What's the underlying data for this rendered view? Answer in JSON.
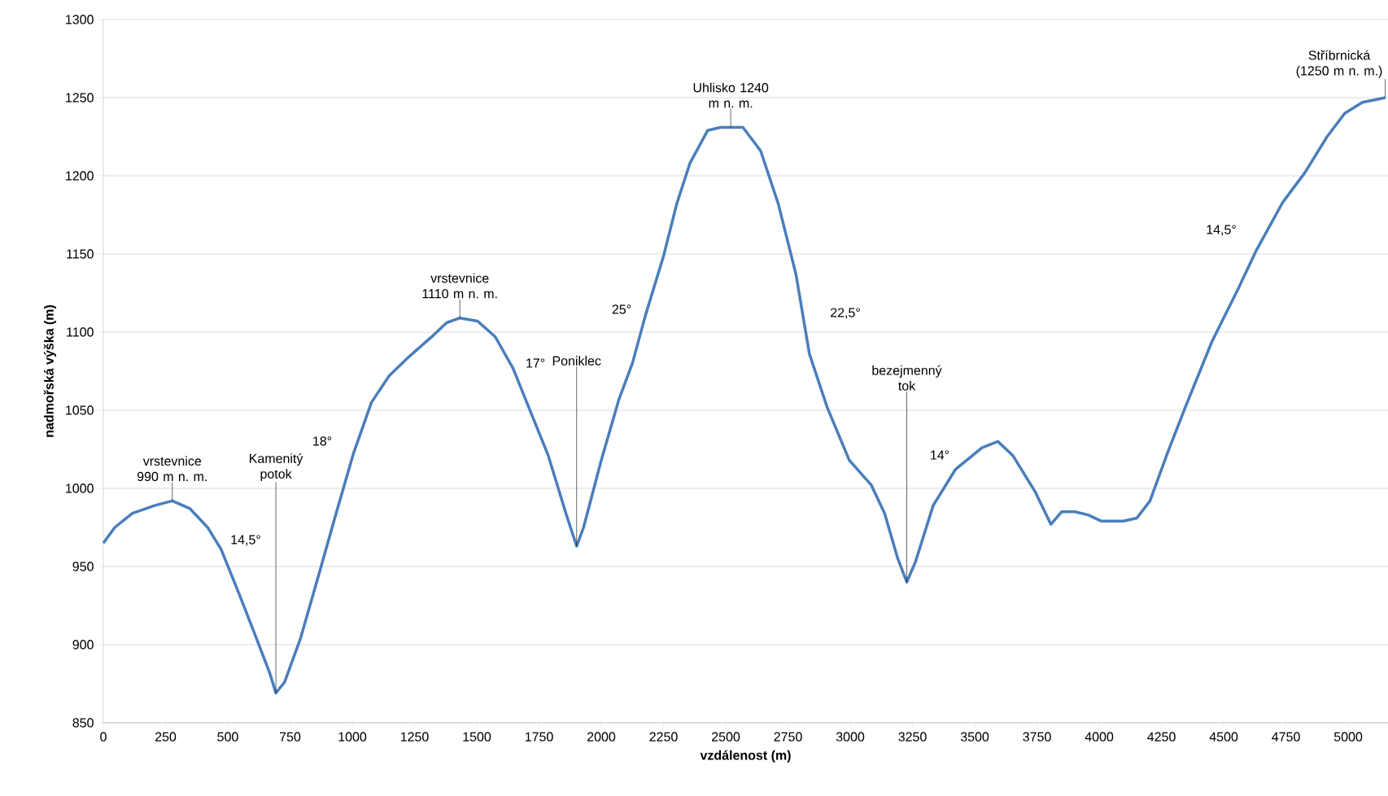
{
  "chart_data": {
    "type": "line",
    "xlabel": "vzdálenost (m)",
    "ylabel": "nadmořská výška (m)",
    "color": "#4a7ebb",
    "grid": "y",
    "xlim": [
      0,
      5160
    ],
    "ylim": [
      850,
      1300
    ],
    "xticks": [
      0,
      250,
      500,
      750,
      1000,
      1250,
      1500,
      1750,
      2000,
      2250,
      2500,
      2750,
      3000,
      3250,
      3500,
      3750,
      4000,
      4250,
      4500,
      4750,
      5000
    ],
    "yticks": [
      850,
      900,
      950,
      1000,
      1050,
      1100,
      1150,
      1200,
      1250,
      1300
    ],
    "x": [
      0,
      46,
      117,
      206,
      277,
      348,
      419,
      473,
      544,
      615,
      668,
      693,
      728,
      792,
      864,
      935,
      1006,
      1077,
      1148,
      1219,
      1326,
      1379,
      1432,
      1503,
      1574,
      1645,
      1716,
      1787,
      1858,
      1901,
      1929,
      2000,
      2071,
      2125,
      2178,
      2249,
      2303,
      2356,
      2427,
      2480,
      2569,
      2640,
      2711,
      2782,
      2836,
      2907,
      2996,
      3085,
      3138,
      3191,
      3227,
      3262,
      3333,
      3422,
      3529,
      3593,
      3653,
      3742,
      3806,
      3849,
      3902,
      3955,
      4009,
      4097,
      4151,
      4204,
      4275,
      4346,
      4453,
      4559,
      4630,
      4737,
      4826,
      4915,
      4986,
      5057,
      5149
    ],
    "values": [
      965,
      975,
      984,
      989,
      992,
      987,
      975,
      961,
      933,
      904,
      882,
      869,
      876,
      904,
      944,
      984,
      1023,
      1055,
      1072,
      1083,
      1098,
      1106,
      1109,
      1107,
      1097,
      1077,
      1049,
      1021,
      984,
      963,
      975,
      1018,
      1057,
      1080,
      1111,
      1148,
      1182,
      1208,
      1229,
      1231,
      1231,
      1216,
      1182,
      1137,
      1086,
      1052,
      1018,
      1002,
      984,
      955,
      940,
      953,
      989,
      1012,
      1026,
      1030,
      1021,
      998,
      977,
      985,
      985,
      983,
      979,
      979,
      981,
      992,
      1023,
      1052,
      1094,
      1128,
      1152,
      1183,
      1202,
      1225,
      1240,
      1247,
      1250
    ],
    "annotations": [
      {
        "text": "vrstevnice 990 m n. m.",
        "x": 277,
        "y": 992
      },
      {
        "text": "Kamenitý potok",
        "x": 693,
        "y": 869
      },
      {
        "text": "vrstevnice 1110 m n. m.",
        "x": 1432,
        "y": 1109
      },
      {
        "text": "Poniklec",
        "x": 1901,
        "y": 963
      },
      {
        "text": "Uhlisko 1240 m n. m.",
        "x": 2520,
        "y": 1231
      },
      {
        "text": "bezejmenný tok",
        "x": 3227,
        "y": 940
      },
      {
        "text": "Stříbrnická (1250 m n. m.)",
        "x": 5149,
        "y": 1250
      },
      "14,5°",
      "18°",
      "17°",
      "25°",
      "22,5°",
      "14°",
      "14,5°"
    ]
  }
}
